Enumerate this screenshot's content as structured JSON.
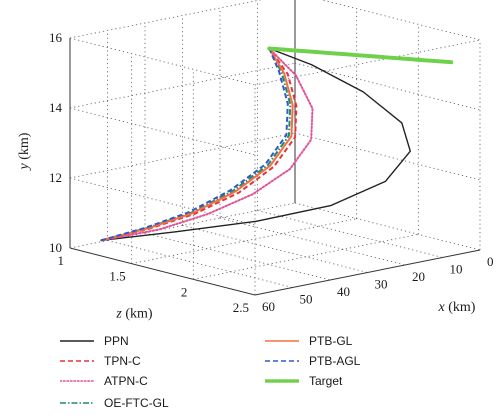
{
  "chart_data": {
    "type": "line",
    "xlabel": "x",
    "xunit": "(km)",
    "ylabel": "y",
    "yunit": "(km)",
    "zlabel": "z",
    "zunit": "(km)",
    "x_ticks": [
      "0",
      "10",
      "20",
      "30",
      "40",
      "50",
      "60"
    ],
    "y_ticks": [
      "10",
      "12",
      "14",
      "16"
    ],
    "z_ticks": [
      "1",
      "1.5",
      "2",
      "2.5"
    ],
    "xlim": [
      0,
      60
    ],
    "ylim": [
      10,
      16
    ],
    "zlim": [
      1,
      2.5
    ],
    "grid": true,
    "legend_position": "bottom",
    "series": [
      {
        "name": "PPN",
        "color": "#222222",
        "style": "solid",
        "points": [
          [
            55,
            10.2,
            1.1
          ],
          [
            45,
            10.5,
            1.4
          ],
          [
            35,
            10.9,
            1.75
          ],
          [
            25,
            11.4,
            2.05
          ],
          [
            17,
            12.1,
            2.25
          ],
          [
            12,
            12.9,
            2.3
          ],
          [
            11,
            13.6,
            2.2
          ],
          [
            13,
            14.3,
            1.95
          ],
          [
            17,
            14.9,
            1.65
          ],
          [
            20,
            15.2,
            1.4
          ]
        ]
      },
      {
        "name": "TPN-C",
        "color": "#e8333c",
        "style": "dashed",
        "points": [
          [
            55,
            10.2,
            1.1
          ],
          [
            47,
            10.5,
            1.25
          ],
          [
            40,
            10.9,
            1.4
          ],
          [
            33,
            11.5,
            1.55
          ],
          [
            27,
            12.2,
            1.65
          ],
          [
            23,
            13.0,
            1.7
          ],
          [
            21,
            13.8,
            1.65
          ],
          [
            20,
            14.6,
            1.55
          ],
          [
            20,
            15.2,
            1.4
          ]
        ]
      },
      {
        "name": "ATPN-C",
        "color": "#e0559a",
        "style": "dotted",
        "points": [
          [
            55,
            10.2,
            1.1
          ],
          [
            46,
            10.5,
            1.3
          ],
          [
            39,
            10.95,
            1.48
          ],
          [
            32,
            11.5,
            1.63
          ],
          [
            26,
            12.2,
            1.75
          ],
          [
            22,
            13.0,
            1.8
          ],
          [
            20,
            13.8,
            1.75
          ],
          [
            19.5,
            14.6,
            1.6
          ],
          [
            20,
            15.2,
            1.4
          ]
        ]
      },
      {
        "name": "OE-FTC-GL",
        "color": "#1f8a6e",
        "style": "dashdot",
        "points": [
          [
            55,
            10.2,
            1.1
          ],
          [
            47,
            10.5,
            1.23
          ],
          [
            40,
            10.9,
            1.37
          ],
          [
            33,
            11.5,
            1.5
          ],
          [
            27,
            12.2,
            1.6
          ],
          [
            23,
            13.0,
            1.65
          ],
          [
            21,
            13.8,
            1.6
          ],
          [
            20,
            14.6,
            1.5
          ],
          [
            20,
            15.2,
            1.4
          ]
        ]
      },
      {
        "name": "PTB-GL",
        "color": "#f07040",
        "style": "solid",
        "points": [
          [
            55,
            10.2,
            1.1
          ],
          [
            47,
            10.5,
            1.24
          ],
          [
            40,
            10.9,
            1.38
          ],
          [
            33,
            11.5,
            1.52
          ],
          [
            27,
            12.2,
            1.62
          ],
          [
            23,
            13.0,
            1.67
          ],
          [
            21,
            13.8,
            1.62
          ],
          [
            20,
            14.6,
            1.52
          ],
          [
            20,
            15.2,
            1.4
          ]
        ]
      },
      {
        "name": "PTB-AGL",
        "color": "#3358c8",
        "style": "dashed",
        "points": [
          [
            55,
            10.2,
            1.1
          ],
          [
            47,
            10.5,
            1.22
          ],
          [
            40,
            10.9,
            1.35
          ],
          [
            33,
            11.5,
            1.48
          ],
          [
            27,
            12.2,
            1.58
          ],
          [
            23,
            13.0,
            1.63
          ],
          [
            21,
            13.8,
            1.58
          ],
          [
            20,
            14.6,
            1.48
          ],
          [
            20,
            15.2,
            1.4
          ]
        ]
      },
      {
        "name": "Target",
        "color": "#6fd04a",
        "style": "dotted",
        "points": [
          [
            20,
            15.2,
            1.4
          ],
          [
            17,
            15.25,
            1.62
          ],
          [
            14,
            15.3,
            1.84
          ],
          [
            11,
            15.35,
            2.06
          ],
          [
            8,
            15.4,
            2.28
          ],
          [
            6,
            15.45,
            2.45
          ]
        ]
      }
    ]
  }
}
